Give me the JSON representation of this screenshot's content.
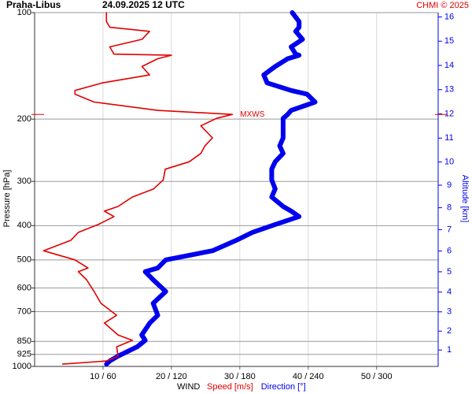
{
  "chart_data": {
    "type": "line",
    "station": "Praha-Libus",
    "title": "24.09.2025 12 UTC",
    "credit": "CHMI © 2025",
    "ylabel": "Pressure [hPa]",
    "y2label": "Altitude [km]",
    "xlabel": "WIND",
    "annotation": "MXWS",
    "log_y": true,
    "grid": true,
    "ylim": [
      1000,
      100
    ],
    "yticks": [
      100,
      200,
      300,
      400,
      500,
      600,
      700,
      850,
      925,
      1000
    ],
    "y2ticks": [
      1,
      2,
      3,
      4,
      5,
      6,
      7,
      8,
      9,
      10,
      11,
      12,
      13,
      14,
      15,
      16
    ],
    "xlim": [
      0,
      59
    ],
    "x2lim": [
      0,
      354
    ],
    "xticks": [
      {
        "value": 10,
        "label": "10 / 60"
      },
      {
        "value": 20,
        "label": "20 / 120"
      },
      {
        "value": 30,
        "label": "30 / 180"
      },
      {
        "value": 40,
        "label": "40 / 240"
      },
      {
        "value": 50,
        "label": "50 / 300"
      }
    ],
    "y": [
      985,
      965,
      936,
      880,
      844,
      815,
      754,
      717,
      663,
      614,
      569,
      540,
      527,
      500,
      471,
      440,
      418,
      397,
      377,
      364,
      353,
      332,
      315,
      297,
      277,
      264,
      250,
      238,
      226,
      209,
      199,
      194,
      189,
      179,
      170,
      166,
      158,
      150,
      142,
      135,
      132,
      131,
      125,
      119,
      113,
      110,
      106,
      100
    ],
    "series": [
      {
        "name": "Speed [m/s]",
        "color": "#e00000",
        "values": [
          4.1,
          10.5,
          12.2,
          12.0,
          14.3,
          12.2,
          10.2,
          12.0,
          9.7,
          8.7,
          7.6,
          6.4,
          7.8,
          5.9,
          1.3,
          5.3,
          6.4,
          9.3,
          11.6,
          10.2,
          12.2,
          14.3,
          17.4,
          18.8,
          19.1,
          22.6,
          24.3,
          24.9,
          26.0,
          24.3,
          26.6,
          28.9,
          18.0,
          8.7,
          5.9,
          5.9,
          9.9,
          16.8,
          15.7,
          18.0,
          20.0,
          11.6,
          11.0,
          15.7,
          16.8,
          11.0,
          10.5,
          10.5
        ]
      },
      {
        "name": "Direction [°]",
        "color": "#0000ee",
        "axis": "x2",
        "values": [
          63,
          66,
          73,
          90,
          97,
          94,
          101,
          108,
          104,
          115,
          104,
          97,
          108,
          115,
          156,
          177,
          191,
          211,
          232,
          225,
          218,
          208,
          211,
          208,
          208,
          211,
          218,
          215,
          218,
          218,
          218,
          222,
          225,
          246,
          239,
          225,
          204,
          201,
          211,
          222,
          232,
          229,
          225,
          235,
          229,
          232,
          232,
          226
        ]
      }
    ]
  }
}
